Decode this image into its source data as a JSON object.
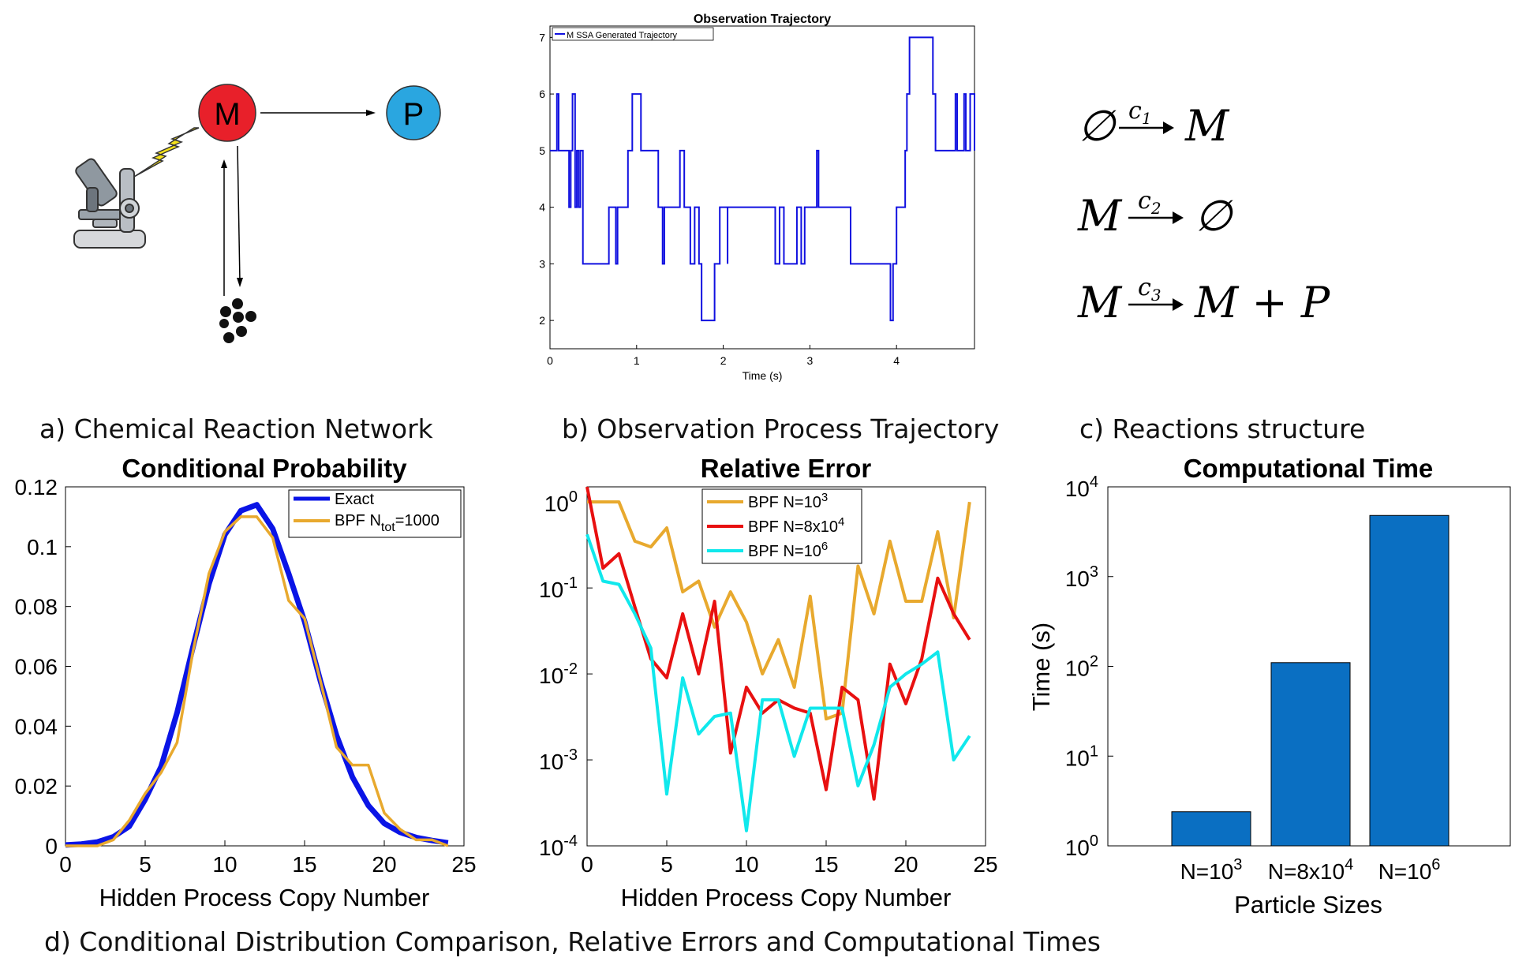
{
  "captions": {
    "a": "a) Chemical Reaction Network",
    "b": "b) Observation Process Trajectory",
    "c": "c) Reactions structure",
    "d": "d) Conditional Distribution Comparison, Relative Errors and Computational Times"
  },
  "network": {
    "node_m": "M",
    "node_p": "P",
    "colors": {
      "m": "#e8202a",
      "p": "#2aa6e0"
    },
    "icons": [
      "microscope-icon",
      "lightning-icon",
      "degradation-dots-icon"
    ]
  },
  "reactions": [
    {
      "left": "∅",
      "rate": "c",
      "idx": "1",
      "right": "M"
    },
    {
      "left": "M",
      "rate": "c",
      "idx": "2",
      "right": "∅"
    },
    {
      "left": "M",
      "rate": "c",
      "idx": "3",
      "right": "M + P"
    }
  ],
  "chart_data": [
    {
      "id": "trajectory",
      "type": "line",
      "title": "Observation Trajectory",
      "xlabel": "Time (s)",
      "ylabel": "",
      "xlim": [
        0,
        4.9
      ],
      "ylim": [
        1.5,
        7.2
      ],
      "xticks": [
        "0",
        "1",
        "2",
        "3",
        "4"
      ],
      "yticks": [
        "2",
        "3",
        "4",
        "5",
        "6",
        "7"
      ],
      "legend": "M  SSA Generated Trajectory",
      "color": "#1010e0",
      "steps": [
        [
          0,
          5
        ],
        [
          0.08,
          6
        ],
        [
          0.1,
          5
        ],
        [
          0.22,
          4
        ],
        [
          0.24,
          5
        ],
        [
          0.26,
          6
        ],
        [
          0.29,
          4
        ],
        [
          0.31,
          5
        ],
        [
          0.33,
          4
        ],
        [
          0.35,
          5
        ],
        [
          0.38,
          3
        ],
        [
          0.68,
          4
        ],
        [
          0.76,
          3
        ],
        [
          0.78,
          4
        ],
        [
          0.9,
          5
        ],
        [
          0.95,
          6
        ],
        [
          1.05,
          5
        ],
        [
          1.25,
          4
        ],
        [
          1.3,
          3
        ],
        [
          1.32,
          4
        ],
        [
          1.5,
          5
        ],
        [
          1.55,
          4
        ],
        [
          1.62,
          3
        ],
        [
          1.67,
          4
        ],
        [
          1.72,
          3
        ],
        [
          1.75,
          2
        ],
        [
          1.9,
          3
        ],
        [
          1.96,
          4
        ],
        [
          2.05,
          3
        ],
        [
          2.1,
          4
        ],
        [
          2.05,
          4
        ],
        [
          2.5,
          4
        ],
        [
          2.6,
          3
        ],
        [
          2.65,
          4
        ],
        [
          2.7,
          3
        ],
        [
          2.85,
          4
        ],
        [
          2.9,
          3
        ],
        [
          2.94,
          4
        ],
        [
          3.08,
          5
        ],
        [
          3.1,
          4
        ],
        [
          3.47,
          3
        ],
        [
          3.93,
          2
        ],
        [
          3.96,
          3
        ],
        [
          4.0,
          4
        ],
        [
          4.1,
          5
        ],
        [
          4.12,
          6
        ],
        [
          4.15,
          7
        ],
        [
          4.42,
          6
        ],
        [
          4.45,
          5
        ],
        [
          4.68,
          6
        ],
        [
          4.7,
          5
        ],
        [
          4.78,
          6
        ],
        [
          4.8,
          5
        ],
        [
          4.85,
          6
        ],
        [
          4.9,
          5
        ]
      ]
    },
    {
      "id": "conditional-probability",
      "type": "line",
      "title": "Conditional Probability",
      "xlabel": "Hidden Process Copy Number",
      "ylabel": "",
      "xlim": [
        0,
        25
      ],
      "ylim": [
        0,
        0.12
      ],
      "xticks": [
        "0",
        "5",
        "10",
        "15",
        "20",
        "25"
      ],
      "yticks": [
        "0",
        "0.02",
        "0.04",
        "0.06",
        "0.08",
        "0.1",
        "0.12"
      ],
      "x": [
        0,
        1,
        2,
        3,
        4,
        5,
        6,
        7,
        8,
        9,
        10,
        11,
        12,
        13,
        14,
        15,
        16,
        17,
        18,
        19,
        20,
        21,
        22,
        23,
        24
      ],
      "series": [
        {
          "name": "Exact",
          "color": "#0a14e6",
          "values": [
            0.0003,
            0.0006,
            0.0013,
            0.003,
            0.0065,
            0.0155,
            0.0265,
            0.0445,
            0.0665,
            0.0875,
            0.104,
            0.112,
            0.114,
            0.106,
            0.091,
            0.075,
            0.055,
            0.037,
            0.023,
            0.0135,
            0.0075,
            0.0045,
            0.0028,
            0.0018,
            0.001
          ]
        },
        {
          "name": "BPF N",
          "sub": "tot",
          "suffix": "=1000",
          "color": "#e8a92e",
          "values": [
            0,
            0,
            0,
            0.002,
            0.0085,
            0.0175,
            0.0245,
            0.0345,
            0.065,
            0.091,
            0.105,
            0.11,
            0.11,
            0.103,
            0.082,
            0.076,
            0.055,
            0.033,
            0.027,
            0.027,
            0.011,
            0.0055,
            0.002,
            0.002,
            0
          ]
        }
      ]
    },
    {
      "id": "relative-error",
      "type": "line",
      "title": "Relative Error",
      "xlabel": "Hidden Process Copy Number",
      "ylabel": "",
      "scale": "log",
      "xlim": [
        0,
        25
      ],
      "ylim": [
        0.0001,
        1.5
      ],
      "xticks": [
        "0",
        "5",
        "10",
        "15",
        "20",
        "25"
      ],
      "yticks": [
        {
          "base": "10",
          "exp": "0"
        },
        {
          "base": "10",
          "exp": "-1"
        },
        {
          "base": "10",
          "exp": "-2"
        },
        {
          "base": "10",
          "exp": "-3"
        },
        {
          "base": "10",
          "exp": "-4"
        }
      ],
      "x": [
        0,
        1,
        2,
        3,
        4,
        5,
        6,
        7,
        8,
        9,
        10,
        11,
        12,
        13,
        14,
        15,
        16,
        17,
        18,
        19,
        20,
        21,
        22,
        23,
        24
      ],
      "series": [
        {
          "name": "BPF N=10",
          "sup": "3",
          "color": "#e8a92e",
          "values": [
            1.0,
            1.0,
            1.0,
            0.35,
            0.3,
            0.5,
            0.09,
            0.12,
            0.035,
            0.09,
            0.04,
            0.01,
            0.025,
            0.007,
            0.08,
            0.003,
            0.0035,
            0.18,
            0.05,
            0.35,
            0.07,
            0.07,
            0.45,
            0.045,
            1.0
          ]
        },
        {
          "name": "BPF N=8x10",
          "sup": "4",
          "color": "#e81010",
          "values": [
            1.5,
            0.17,
            0.25,
            0.06,
            0.015,
            0.009,
            0.05,
            0.01,
            0.07,
            0.0012,
            0.007,
            0.0035,
            0.005,
            0.004,
            0.0035,
            0.00045,
            0.007,
            0.005,
            0.00035,
            0.013,
            0.0045,
            0.015,
            0.13,
            0.05,
            0.025
          ]
        },
        {
          "name": "BPF N=10",
          "sup": "6",
          "color": "#10e8ec",
          "values": [
            0.42,
            0.12,
            0.11,
            0.05,
            0.02,
            0.0004,
            0.009,
            0.002,
            0.0032,
            0.0035,
            0.00015,
            0.005,
            0.005,
            0.0011,
            0.004,
            0.004,
            0.004,
            0.0005,
            0.0015,
            0.007,
            0.01,
            0.013,
            0.018,
            0.001,
            0.0019
          ]
        }
      ]
    },
    {
      "id": "computational-time",
      "type": "bar",
      "title": "Computational Time",
      "xlabel": "Particle Sizes",
      "ylabel": "Time (s)",
      "scale": "log",
      "ylim": [
        1,
        10000
      ],
      "color": "#0a6fc2",
      "categories": [
        {
          "base": "N=10",
          "sup": "3"
        },
        {
          "base": "N=8x10",
          "sup": "4"
        },
        {
          "base": "N=10",
          "sup": "6"
        }
      ],
      "values": [
        2.4,
        110,
        4800
      ],
      "yticks": [
        {
          "base": "10",
          "exp": "0"
        },
        {
          "base": "10",
          "exp": "1"
        },
        {
          "base": "10",
          "exp": "2"
        },
        {
          "base": "10",
          "exp": "3"
        },
        {
          "base": "10",
          "exp": "4"
        }
      ]
    }
  ]
}
